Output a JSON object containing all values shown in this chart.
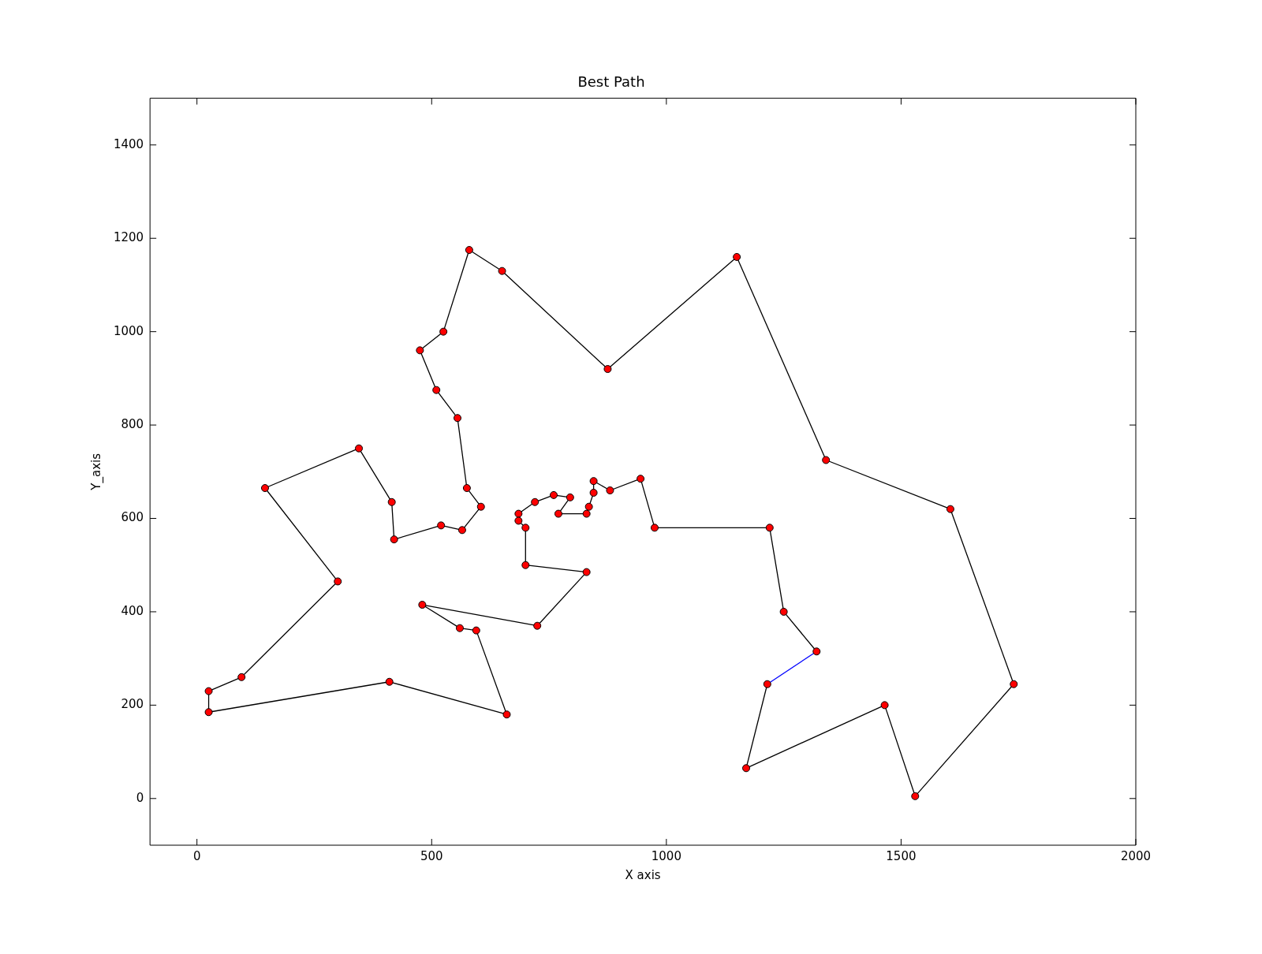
{
  "chart_data": {
    "type": "line",
    "title": "Best Path",
    "xlabel": "X axis",
    "ylabel": "Y_axis",
    "xlim": [
      -100,
      2000
    ],
    "xticks": [
      0,
      500,
      1000,
      1500,
      2000
    ],
    "ylim": [
      -100,
      1500
    ],
    "yticks": [
      0,
      200,
      400,
      600,
      800,
      1000,
      1200,
      1400
    ],
    "grid": false,
    "legend": false,
    "series": [
      {
        "color": "#000000",
        "marker": "circle",
        "x": [
          1320,
          1250,
          1220,
          975,
          945,
          880,
          845,
          845,
          835,
          830,
          770,
          795,
          760,
          720,
          685,
          685,
          700,
          700,
          830,
          725,
          480,
          560,
          595,
          660,
          410,
          25,
          25,
          95,
          300,
          145,
          345,
          415,
          420,
          520,
          565,
          605,
          575,
          555,
          510,
          475,
          525,
          580,
          650,
          875,
          1150,
          1340,
          1605,
          1740,
          1530,
          1465,
          1170,
          1215
        ],
        "values": [
          315,
          400,
          580,
          580,
          685,
          660,
          680,
          655,
          625,
          610,
          610,
          645,
          650,
          635,
          610,
          595,
          580,
          500,
          485,
          370,
          415,
          365,
          360,
          180,
          250,
          185,
          230,
          260,
          465,
          665,
          750,
          635,
          555,
          585,
          575,
          625,
          665,
          815,
          875,
          960,
          1000,
          1175,
          1130,
          920,
          1160,
          725,
          620,
          245,
          5,
          200,
          65,
          245
        ]
      },
      {
        "color": "#0000ff",
        "marker": "none",
        "x": [
          1215,
          1320
        ],
        "values": [
          245,
          315
        ]
      }
    ]
  }
}
